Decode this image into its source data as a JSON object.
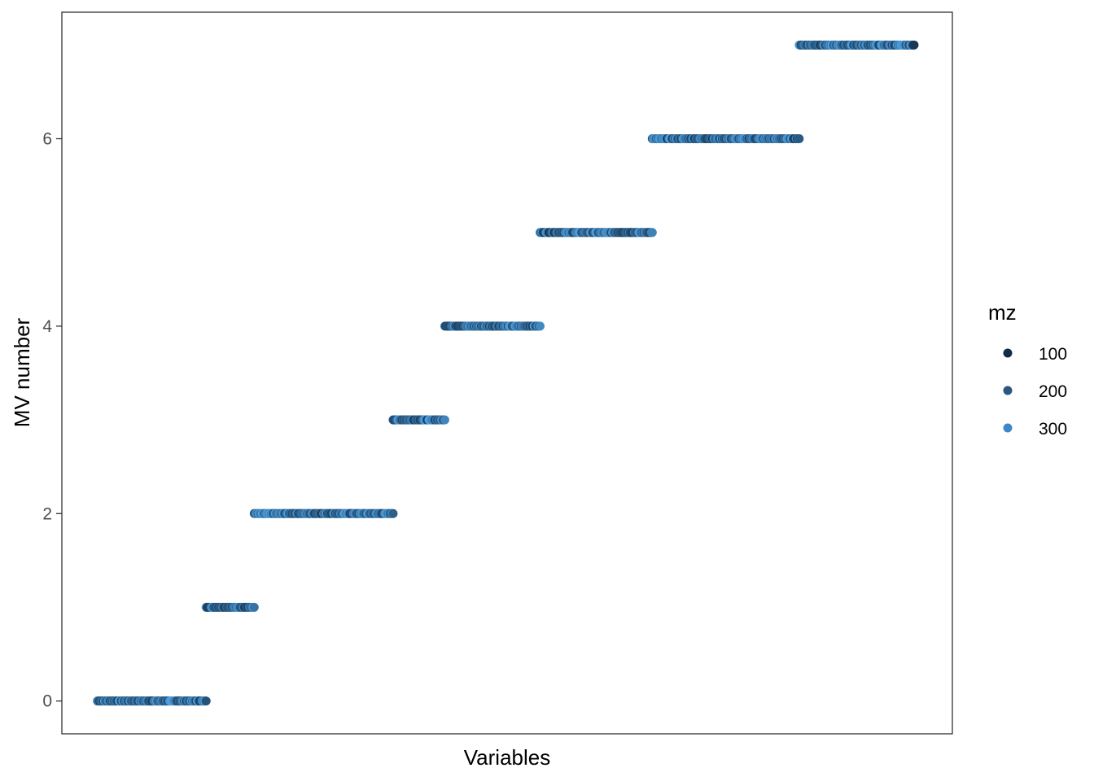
{
  "chart_data": {
    "type": "scatter",
    "title": "",
    "xlabel": "Variables",
    "ylabel": "MV number",
    "ylim": [
      -0.35,
      7.35
    ],
    "yticks": [
      "0",
      "2",
      "4",
      "6"
    ],
    "ytick_values": [
      0,
      2,
      4,
      6
    ],
    "xlim": [
      0,
      1000
    ],
    "grid": false,
    "legend": {
      "title": "mz",
      "position": "right",
      "entries": [
        {
          "label": "100",
          "color": "#132b43"
        },
        {
          "label": "200",
          "color": "#2a5680"
        },
        {
          "label": "300",
          "color": "#3f86c9"
        }
      ]
    },
    "color_scale": {
      "low": "#132b43",
      "high": "#56b1f7",
      "min": 50,
      "max": 350
    },
    "groups": [
      {
        "mv": 0,
        "x_start": 40,
        "x_end": 162
      },
      {
        "mv": 1,
        "x_start": 162,
        "x_end": 216
      },
      {
        "mv": 2,
        "x_start": 216,
        "x_end": 372
      },
      {
        "mv": 3,
        "x_start": 372,
        "x_end": 430
      },
      {
        "mv": 4,
        "x_start": 430,
        "x_end": 537
      },
      {
        "mv": 5,
        "x_start": 537,
        "x_end": 663
      },
      {
        "mv": 6,
        "x_start": 663,
        "x_end": 828
      },
      {
        "mv": 7,
        "x_start": 828,
        "x_end": 957
      }
    ]
  }
}
